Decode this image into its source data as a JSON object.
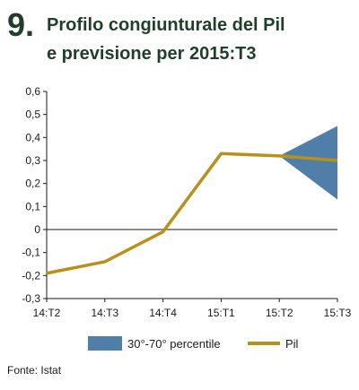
{
  "header": {
    "number": "9.",
    "title_line1": "Profilo congiunturale del Pil",
    "title_line2": "e previsione per 2015:T3"
  },
  "source": "Fonte: Istat",
  "colors": {
    "title_number": "#1f3f2a",
    "title_text": "#1f3f2a",
    "line": "#b8901c",
    "band": "#4f7fa8",
    "axis": "#1a1a1a"
  },
  "chart_data": {
    "type": "line",
    "categories": [
      "14:T2",
      "14:T3",
      "14:T4",
      "15:T1",
      "15:T2",
      "15:T3"
    ],
    "ylim": [
      -0.3,
      0.6
    ],
    "yticks": [
      -0.3,
      -0.2,
      -0.1,
      0,
      0.1,
      0.2,
      0.3,
      0.4,
      0.5,
      0.6
    ],
    "ytick_labels": [
      "-0,3",
      "-0,2",
      "-0,1",
      "0",
      "0,1",
      "0,2",
      "0,3",
      "0,4",
      "0,5",
      "0,6"
    ],
    "grid": false,
    "series": [
      {
        "name": "Pil",
        "values": [
          -0.19,
          -0.14,
          -0.01,
          0.33,
          0.32,
          0.3
        ]
      }
    ],
    "band": {
      "name": "30°-70° percentile",
      "start_category": "15:T2",
      "start_value": 0.32,
      "end_category": "15:T3",
      "upper": 0.45,
      "lower": 0.13
    },
    "legend": [
      {
        "label": "30°-70° percentile",
        "kind": "band"
      },
      {
        "label": "Pil",
        "kind": "line"
      }
    ],
    "legend_position": "bottom"
  }
}
